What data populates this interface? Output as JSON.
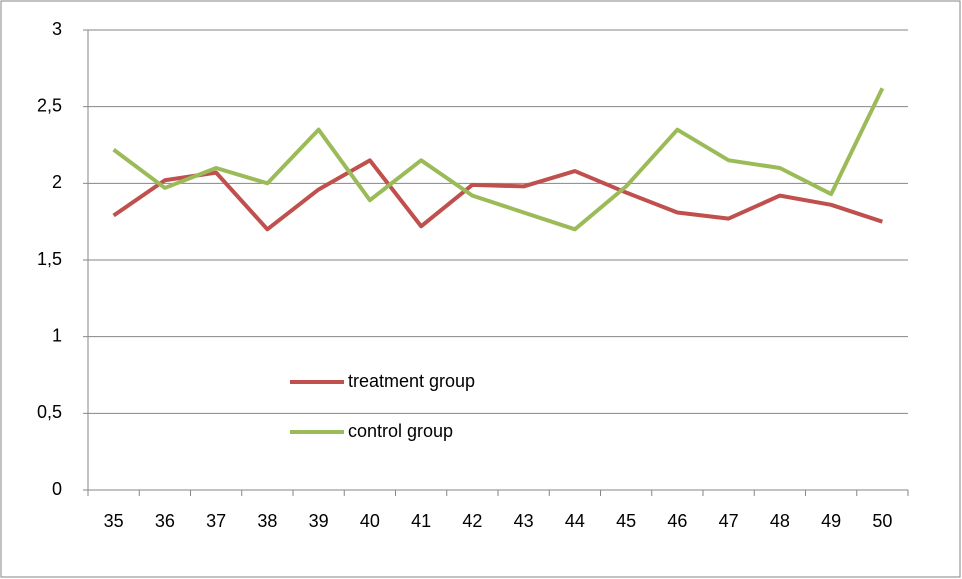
{
  "chart_data": {
    "type": "line",
    "categories": [
      "35",
      "36",
      "37",
      "38",
      "39",
      "40",
      "41",
      "42",
      "43",
      "44",
      "45",
      "46",
      "47",
      "48",
      "49",
      "50"
    ],
    "series": [
      {
        "name": "treatment group",
        "color": "#c0504d",
        "values": [
          1.79,
          2.02,
          2.07,
          1.7,
          1.96,
          2.15,
          1.72,
          1.99,
          1.98,
          2.08,
          1.94,
          1.81,
          1.77,
          1.92,
          1.86,
          1.75
        ]
      },
      {
        "name": "control group",
        "color": "#9bbb59",
        "values": [
          2.22,
          1.97,
          2.1,
          2.0,
          2.35,
          1.89,
          2.15,
          1.92,
          1.81,
          1.7,
          1.98,
          2.35,
          2.15,
          2.1,
          1.93,
          2.62
        ]
      }
    ],
    "ylim": [
      0,
      3
    ],
    "yticks": [
      0,
      {
        "value": 0.5,
        "label": "0,5"
      },
      1,
      {
        "value": 1.5,
        "label": "1,5"
      },
      2,
      {
        "value": 2.5,
        "label": "2,5"
      },
      3
    ],
    "grid": true,
    "legend": "inside-lower-left"
  }
}
